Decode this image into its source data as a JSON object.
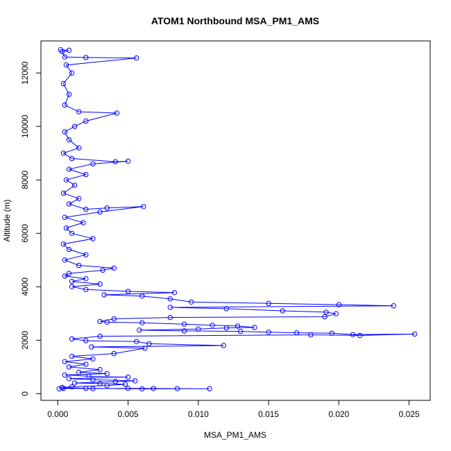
{
  "chart_data": {
    "type": "scatter",
    "title": "ATOM1 Northbound MSA_PM1_AMS",
    "xlabel": "MSA_PM1_AMS",
    "ylabel": "Altitude (m)",
    "xlim": [
      -0.0012,
      0.0265
    ],
    "ylim": [
      -250,
      13200
    ],
    "xticks": [
      0.0,
      0.005,
      0.01,
      0.015,
      0.02,
      0.025
    ],
    "xtick_labels": [
      "0.000",
      "0.005",
      "0.010",
      "0.015",
      "0.020",
      "0.025"
    ],
    "yticks": [
      0,
      2000,
      4000,
      6000,
      8000,
      10000,
      12000
    ],
    "ytick_labels": [
      "0",
      "2000",
      "4000",
      "6000",
      "8000",
      "10000",
      "12000"
    ],
    "marker": "open-circle",
    "connected": true,
    "grid": false,
    "series_color": "#0000ff",
    "series": [
      {
        "points": [
          [
            0.0001,
            180
          ],
          [
            0.0004,
            200
          ],
          [
            0.0025,
            190
          ],
          [
            0.005,
            200
          ],
          [
            0.0068,
            195
          ],
          [
            0.0085,
            190
          ],
          [
            0.0108,
            185
          ],
          [
            0.006,
            180
          ],
          [
            0.002,
            200
          ],
          [
            0.0003,
            230
          ],
          [
            0.001,
            260
          ],
          [
            0.0035,
            300
          ],
          [
            0.0048,
            350
          ],
          [
            0.003,
            380
          ],
          [
            0.0012,
            400
          ],
          [
            0.0041,
            450
          ],
          [
            0.0055,
            480
          ],
          [
            0.0025,
            520
          ],
          [
            0.0008,
            560
          ],
          [
            0.005,
            620
          ],
          [
            0.0022,
            650
          ],
          [
            0.0005,
            700
          ],
          [
            0.0035,
            750
          ],
          [
            0.0015,
            800
          ],
          [
            0.003,
            900
          ],
          [
            0.0008,
            1000
          ],
          [
            0.002,
            1100
          ],
          [
            0.0005,
            1200
          ],
          [
            0.0025,
            1300
          ],
          [
            0.001,
            1400
          ],
          [
            0.004,
            1500
          ],
          [
            0.0062,
            1700
          ],
          [
            0.0024,
            1750
          ],
          [
            0.0118,
            1800
          ],
          [
            0.0065,
            1870
          ],
          [
            0.0056,
            1950
          ],
          [
            0.002,
            1980
          ],
          [
            0.001,
            2050
          ],
          [
            0.003,
            2150
          ],
          [
            0.018,
            2200
          ],
          [
            0.0215,
            2180
          ],
          [
            0.0254,
            2230
          ],
          [
            0.021,
            2210
          ],
          [
            0.0195,
            2260
          ],
          [
            0.017,
            2280
          ],
          [
            0.015,
            2300
          ],
          [
            0.013,
            2330
          ],
          [
            0.009,
            2350
          ],
          [
            0.0058,
            2380
          ],
          [
            0.01,
            2420
          ],
          [
            0.012,
            2460
          ],
          [
            0.014,
            2480
          ],
          [
            0.0128,
            2530
          ],
          [
            0.011,
            2560
          ],
          [
            0.009,
            2600
          ],
          [
            0.006,
            2650
          ],
          [
            0.0035,
            2680
          ],
          [
            0.003,
            2700
          ],
          [
            0.004,
            2800
          ],
          [
            0.008,
            2850
          ],
          [
            0.019,
            2880
          ],
          [
            0.0198,
            2990
          ],
          [
            0.0191,
            3050
          ],
          [
            0.016,
            3100
          ],
          [
            0.012,
            3180
          ],
          [
            0.008,
            3230
          ],
          [
            0.0239,
            3290
          ],
          [
            0.02,
            3330
          ],
          [
            0.015,
            3380
          ],
          [
            0.0095,
            3430
          ],
          [
            0.008,
            3550
          ],
          [
            0.006,
            3650
          ],
          [
            0.0033,
            3700
          ],
          [
            0.0083,
            3780
          ],
          [
            0.005,
            3830
          ],
          [
            0.002,
            3900
          ],
          [
            0.001,
            4000
          ],
          [
            0.003,
            4100
          ],
          [
            0.001,
            4200
          ],
          [
            0.002,
            4300
          ],
          [
            0.0005,
            4400
          ],
          [
            0.0008,
            4500
          ],
          [
            0.0032,
            4620
          ],
          [
            0.004,
            4700
          ],
          [
            0.0015,
            4800
          ],
          [
            0.0005,
            5000
          ],
          [
            0.002,
            5200
          ],
          [
            0.0008,
            5400
          ],
          [
            0.0004,
            5600
          ],
          [
            0.0025,
            5800
          ],
          [
            0.001,
            6000
          ],
          [
            0.0006,
            6200
          ],
          [
            0.0018,
            6400
          ],
          [
            0.0005,
            6600
          ],
          [
            0.003,
            6800
          ],
          [
            0.0061,
            7000
          ],
          [
            0.0035,
            6950
          ],
          [
            0.002,
            6900
          ],
          [
            0.0008,
            7100
          ],
          [
            0.0015,
            7300
          ],
          [
            0.0004,
            7500
          ],
          [
            0.0012,
            7800
          ],
          [
            0.0006,
            8000
          ],
          [
            0.002,
            8200
          ],
          [
            0.0008,
            8400
          ],
          [
            0.0025,
            8600
          ],
          [
            0.005,
            8700
          ],
          [
            0.0041,
            8680
          ],
          [
            0.001,
            8800
          ],
          [
            0.0004,
            9000
          ],
          [
            0.0015,
            9200
          ],
          [
            0.0008,
            9500
          ],
          [
            0.0005,
            9800
          ],
          [
            0.0012,
            10000
          ],
          [
            0.002,
            10200
          ],
          [
            0.0042,
            10500
          ],
          [
            0.0015,
            10550
          ],
          [
            0.0005,
            10800
          ],
          [
            0.0008,
            11200
          ],
          [
            0.0004,
            11600
          ],
          [
            0.001,
            12000
          ],
          [
            0.0006,
            12300
          ],
          [
            0.0056,
            12560
          ],
          [
            0.002,
            12580
          ],
          [
            0.0005,
            12600
          ],
          [
            0.0003,
            12800
          ],
          [
            0.0008,
            12850
          ],
          [
            0.0002,
            12870
          ]
        ]
      }
    ]
  }
}
